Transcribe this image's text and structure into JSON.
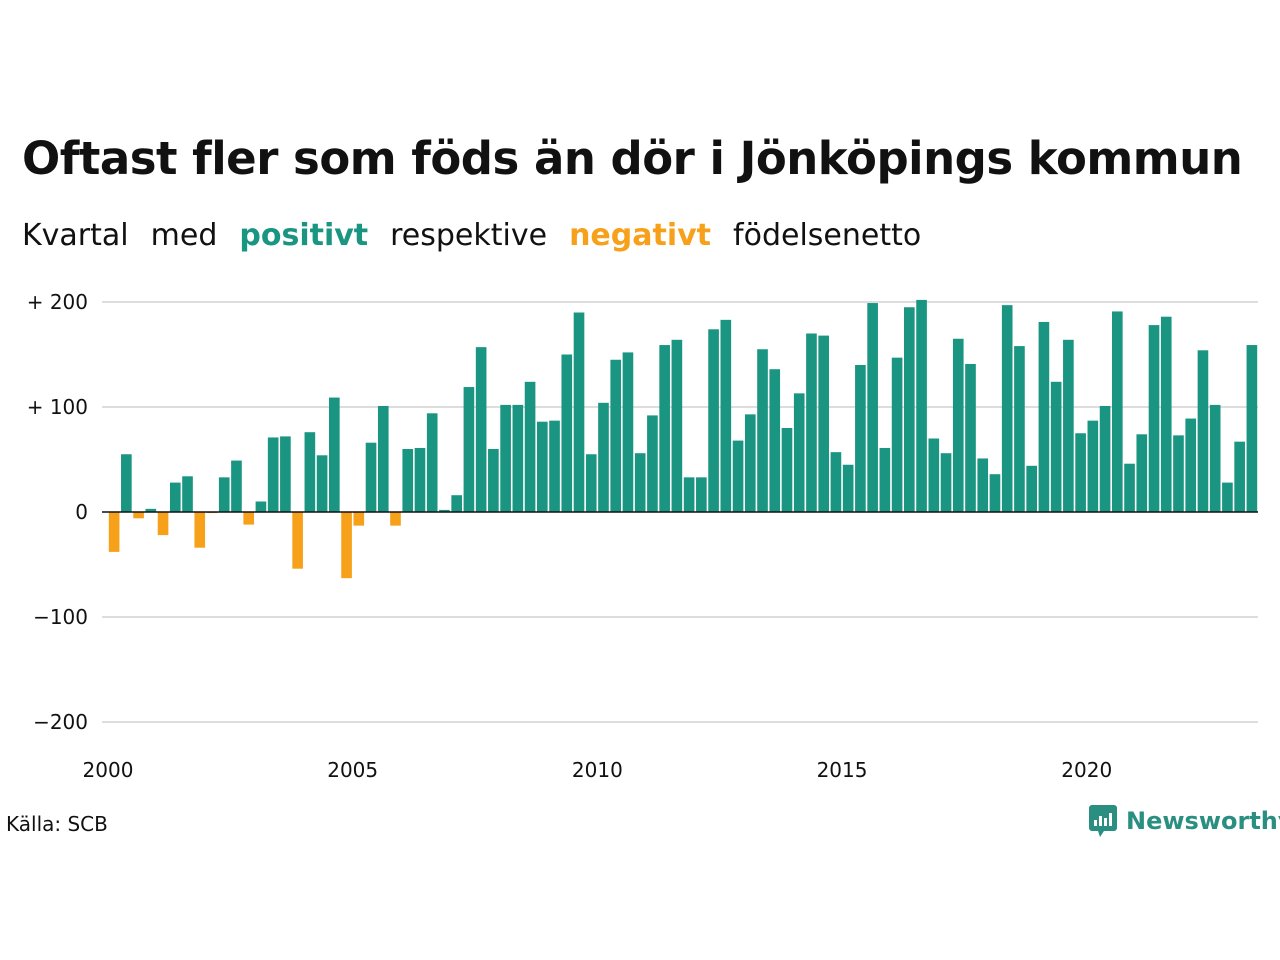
{
  "title": "Oftast fler som föds än dör i Jönköpings kommun",
  "subtitle": {
    "w1": "Kvartal",
    "w2": "med",
    "positive": "positivt",
    "w3": "respektive",
    "negative": "negativt",
    "w4": "födelsenetto"
  },
  "source": "Källa: SCB",
  "brand": "Newsworthy",
  "colors": {
    "positive": "#1a9582",
    "negative": "#f7a11b",
    "grid": "#dddddd",
    "brand": "#2a8f80"
  },
  "chart_data": {
    "type": "bar",
    "x_start": 2000,
    "period": "quarter",
    "ylim": [
      -200,
      200
    ],
    "yticks": [
      200,
      100,
      0,
      -100,
      -200
    ],
    "ytick_labels": [
      "+ 200",
      "+ 100",
      "0",
      "−100",
      "−200"
    ],
    "xticks": [
      "2000",
      "2005",
      "2010",
      "2015",
      "2020"
    ],
    "grid": true,
    "values": [
      -38,
      55,
      -6,
      3,
      -22,
      28,
      34,
      -34,
      -1,
      33,
      49,
      -12,
      10,
      71,
      72,
      -54,
      76,
      54,
      109,
      -63,
      -13,
      66,
      101,
      -13,
      60,
      61,
      94,
      2,
      16,
      119,
      157,
      60,
      102,
      102,
      124,
      86,
      87,
      150,
      190,
      55,
      104,
      145,
      152,
      56,
      92,
      159,
      164,
      33,
      33,
      174,
      183,
      68,
      93,
      155,
      136,
      80,
      113,
      170,
      168,
      57,
      45,
      140,
      199,
      61,
      147,
      195,
      202,
      70,
      56,
      165,
      141,
      51,
      36,
      197,
      158,
      44,
      181,
      124,
      164,
      75,
      87,
      101,
      191,
      46,
      74,
      178,
      186,
      73,
      89,
      154,
      102,
      28,
      67,
      159
    ]
  }
}
